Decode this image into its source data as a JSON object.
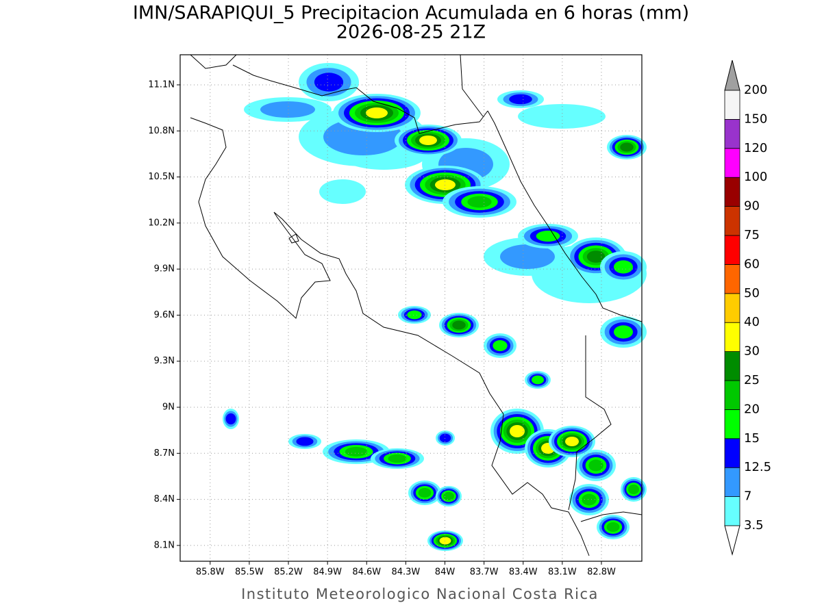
{
  "title": "IMN/SARAPIQUI_5 Precipitacion Acumulada en 6 horas (mm)",
  "subtitle": "2026-08-25 21Z",
  "credit": "Instituto Meteorologico Nacional Costa Rica",
  "map": {
    "lon_range": [
      -86.03,
      -82.49
    ],
    "lat_range": [
      7.997,
      11.296
    ],
    "lat_ticks": [
      {
        "value": 11.1,
        "label": "11.1N"
      },
      {
        "value": 10.8,
        "label": "10.8N"
      },
      {
        "value": 10.5,
        "label": "10.5N"
      },
      {
        "value": 10.2,
        "label": "10.2N"
      },
      {
        "value": 9.9,
        "label": "9.9N"
      },
      {
        "value": 9.6,
        "label": "9.6N"
      },
      {
        "value": 9.3,
        "label": "9.3N"
      },
      {
        "value": 9,
        "label": "9N"
      },
      {
        "value": 8.7,
        "label": "8.7N"
      },
      {
        "value": 8.4,
        "label": "8.4N"
      },
      {
        "value": 8.1,
        "label": "8.1N"
      }
    ],
    "lon_ticks": [
      {
        "value": -85.8,
        "label": "85.8W"
      },
      {
        "value": -85.5,
        "label": "85.5W"
      },
      {
        "value": -85.2,
        "label": "85.2W"
      },
      {
        "value": -84.9,
        "label": "84.9W"
      },
      {
        "value": -84.6,
        "label": "84.6W"
      },
      {
        "value": -84.3,
        "label": "84.3W"
      },
      {
        "value": -84,
        "label": "84W"
      },
      {
        "value": -83.7,
        "label": "83.7W"
      },
      {
        "value": -83.4,
        "label": "83.4W"
      },
      {
        "value": -83.1,
        "label": "83.1W"
      },
      {
        "value": -82.8,
        "label": "82.8W"
      }
    ],
    "grid": true
  },
  "colorbar": {
    "levels": [
      3.5,
      7,
      12.5,
      15,
      20,
      25,
      30,
      40,
      50,
      60,
      75,
      90,
      100,
      120,
      150,
      200
    ],
    "colors": [
      "#66ffff",
      "#3399ff",
      "#0000ff",
      "#00ff00",
      "#00c800",
      "#008c00",
      "#ffff00",
      "#ffcc00",
      "#ff6600",
      "#ff0000",
      "#cc3300",
      "#990000",
      "#ff00ff",
      "#9933cc",
      "#f5f5f5"
    ],
    "under_color": "#ffffff",
    "over_color": "#a0a0a0"
  }
}
